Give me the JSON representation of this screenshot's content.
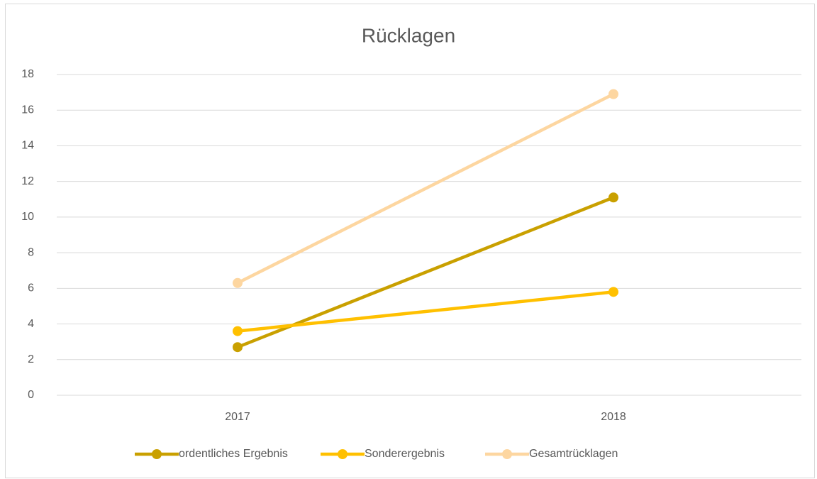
{
  "chart_data": {
    "type": "line",
    "title": "Rücklagen",
    "categories": [
      "2017",
      "2018"
    ],
    "series": [
      {
        "name": "ordentliches Ergebnis",
        "color": "#c9a000",
        "values": [
          2.7,
          11.1
        ]
      },
      {
        "name": "Sonderergebnis",
        "color": "#ffc000",
        "values": [
          3.6,
          5.8
        ]
      },
      {
        "name": "Gesamtrücklagen",
        "color": "#fdd6a0",
        "values": [
          6.3,
          16.9
        ]
      }
    ],
    "ylim": [
      0,
      18
    ],
    "yticks": [
      0,
      2,
      4,
      6,
      8,
      10,
      12,
      14,
      16,
      18
    ],
    "grid": true,
    "legend": "bottom"
  }
}
